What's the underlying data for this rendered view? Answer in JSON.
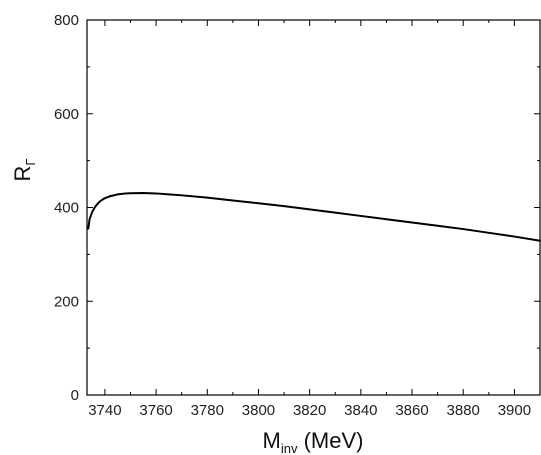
{
  "chart_data": {
    "type": "line",
    "title": "",
    "xlabel": {
      "main": "M",
      "sub": "inv",
      "unit": " (MeV)"
    },
    "ylabel": {
      "main": "R",
      "sub": "Γ"
    },
    "xlim": [
      3733,
      3910
    ],
    "ylim": [
      0,
      800
    ],
    "x_ticks": [
      3740,
      3760,
      3780,
      3800,
      3820,
      3840,
      3860,
      3880,
      3900
    ],
    "x_tick_labels": [
      "3740",
      "3760",
      "3780",
      "3800",
      "3820",
      "3840",
      "3860",
      "3880",
      "3900"
    ],
    "y_ticks": [
      0,
      200,
      400,
      600,
      800
    ],
    "y_tick_labels": [
      "0",
      "200",
      "400",
      "600",
      "800"
    ],
    "grid": false,
    "series": [
      {
        "color": "#000000",
        "x": [
          3733.5,
          3734,
          3735,
          3736,
          3737,
          3738,
          3740,
          3742,
          3745,
          3748,
          3750,
          3755,
          3760,
          3765,
          3770,
          3780,
          3790,
          3800,
          3810,
          3820,
          3830,
          3840,
          3850,
          3860,
          3870,
          3880,
          3890,
          3900,
          3910
        ],
        "y": [
          355,
          375,
          390,
          400,
          407,
          413,
          420,
          424,
          428,
          430,
          430.5,
          431,
          430,
          428,
          426,
          421,
          415,
          409,
          403,
          396,
          389,
          382,
          375,
          368,
          361,
          354,
          346,
          338,
          329
        ]
      }
    ]
  }
}
